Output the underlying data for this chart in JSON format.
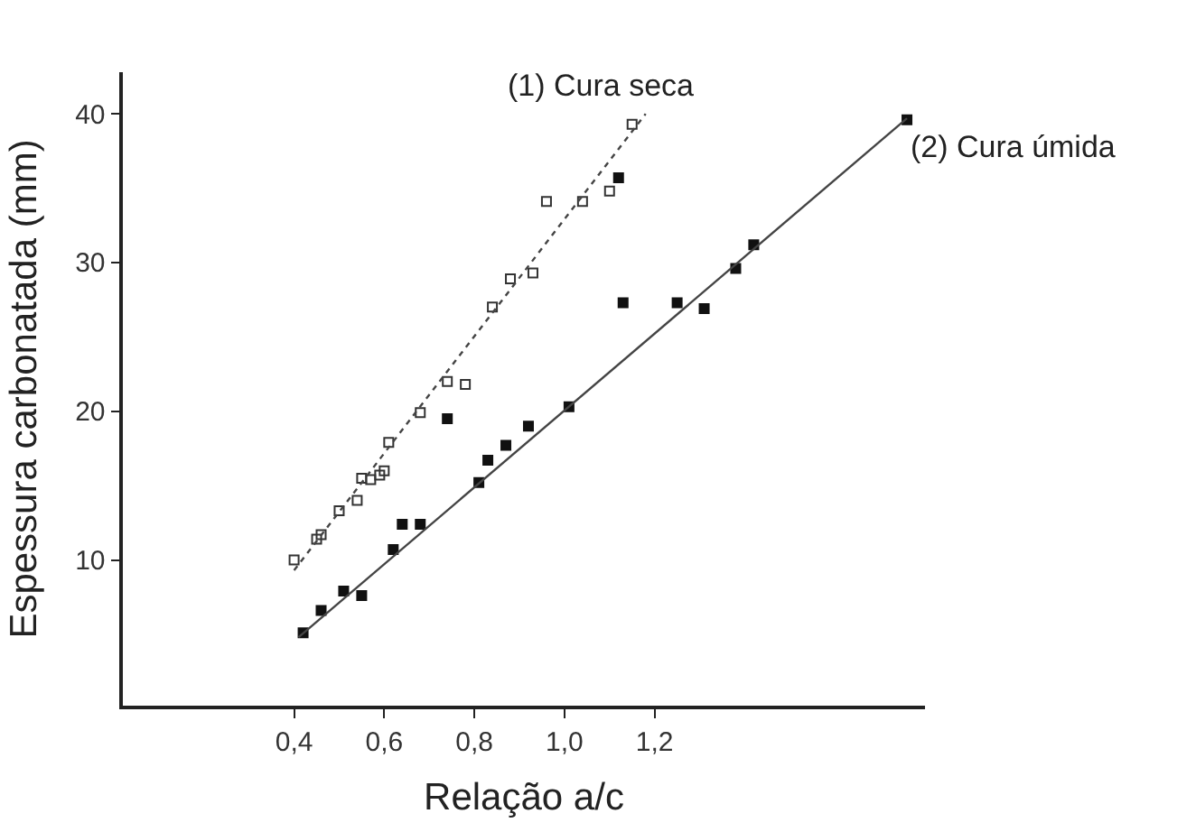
{
  "chart_data": {
    "type": "scatter",
    "xlabel": "Relação a/c",
    "ylabel": "Espessura carbonatada (mm)",
    "xlim": [
      0.02,
      1.8
    ],
    "ylim": [
      0.2,
      42.8
    ],
    "xticks": [
      {
        "value": 0.4,
        "label": "0,4"
      },
      {
        "value": 0.6,
        "label": "0,6"
      },
      {
        "value": 0.8,
        "label": "0,8"
      },
      {
        "value": 1.0,
        "label": "1,0"
      },
      {
        "value": 1.2,
        "label": "1,2"
      }
    ],
    "yticks": [
      10,
      20,
      30,
      40
    ],
    "series": [
      {
        "color": "#333333",
        "marker": "square-open",
        "x": [
          0.4,
          0.45,
          0.46,
          0.5,
          0.54,
          0.55,
          0.57,
          0.59,
          0.6,
          0.61,
          0.68,
          0.74,
          0.78,
          0.84,
          0.88,
          0.93,
          0.96,
          1.04,
          1.1,
          1.15
        ],
        "values": [
          10.0,
          11.4,
          11.7,
          13.3,
          14.0,
          15.5,
          15.4,
          15.7,
          16.0,
          17.9,
          19.9,
          22.0,
          21.8,
          27.0,
          28.9,
          29.3,
          34.1,
          34.1,
          34.8,
          39.3
        ]
      },
      {
        "color": "#111111",
        "marker": "square",
        "x": [
          0.42,
          0.46,
          0.51,
          0.55,
          0.62,
          0.64,
          0.68,
          0.74,
          0.81,
          0.83,
          0.87,
          0.92,
          1.01,
          1.12,
          1.13,
          1.25,
          1.31,
          1.38,
          1.42,
          1.76
        ],
        "values": [
          5.1,
          6.6,
          7.9,
          7.6,
          10.7,
          12.4,
          12.4,
          19.5,
          15.2,
          16.7,
          17.7,
          19.0,
          20.3,
          35.7,
          27.3,
          27.3,
          26.9,
          29.6,
          31.2,
          39.6
        ]
      },
      {
        "type": "line",
        "color": "#444444",
        "line_style": "dotted",
        "x": [
          0.4,
          1.18
        ],
        "values": [
          9.3,
          40.0
        ]
      },
      {
        "type": "line",
        "color": "#444444",
        "line_style": "solid",
        "x": [
          0.41,
          1.76
        ],
        "values": [
          4.8,
          39.7
        ]
      }
    ],
    "annotations": [
      {
        "text": "(1) Cura seca",
        "x": 1.18,
        "y": 40.0
      },
      {
        "text": "(2) Cura úmida",
        "x": 1.76,
        "y": 39.7
      }
    ]
  }
}
